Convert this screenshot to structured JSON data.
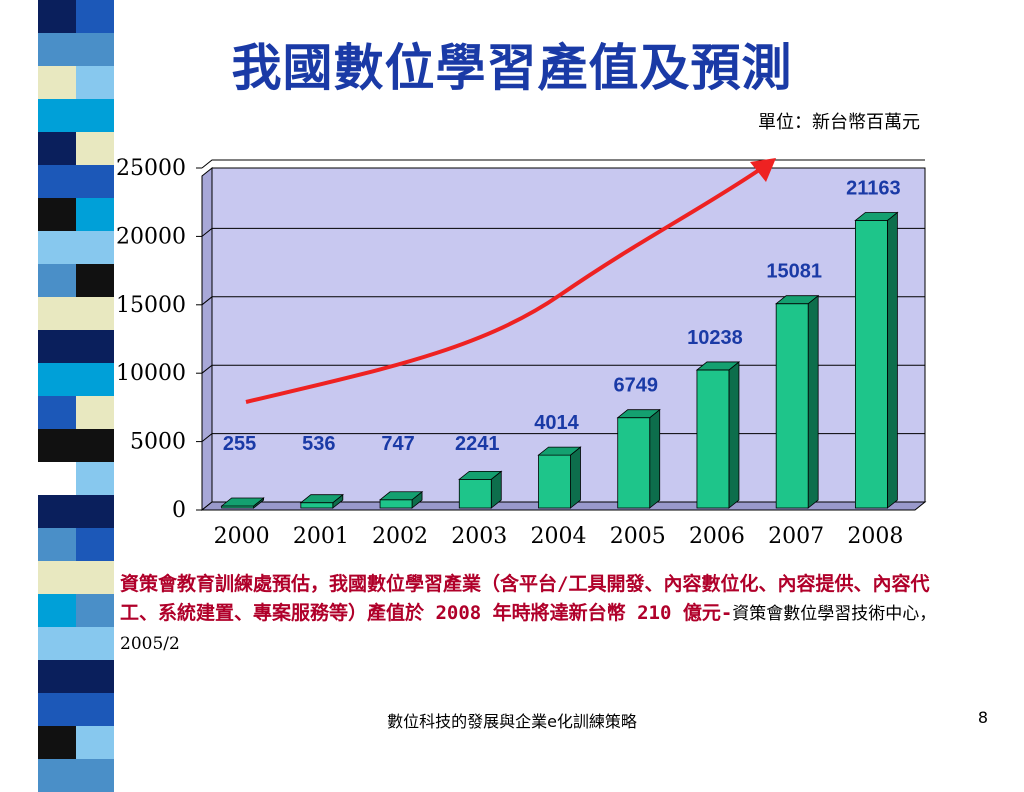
{
  "slide": {
    "title": "我國數位學習產值及預測",
    "unit": "單位：新台幣百萬元",
    "caption_main": "資策會教育訓練處預估，我國數位學習產業（含平台/工具開發、內容數位化、內容提供、內容代工、系統建置、專案服務等）產值於 2008 年時將達新台幣 210 億元-",
    "caption_source": "資策會數位學習技術中心，2005/2",
    "footer": "數位科技的發展與企業e化訓練策略",
    "page_number": "8"
  },
  "colors": {
    "title": "#1a3aa6",
    "plot_bg": "#c8c8f0",
    "bar_front": "#1ec58a",
    "bar_top": "#14a070",
    "bar_side": "#0d6e4c",
    "data_label": "#1a3aa6",
    "trend_arrow": "#ee2222",
    "stripe_palette": [
      "#0a1f5c",
      "#4a8fc8",
      "#e8e8c0",
      "#00a0d8",
      "#1c58b8",
      "#111111",
      "#87c8ee",
      "#ffffff",
      "#3a78c0"
    ]
  },
  "chart_data": {
    "type": "bar",
    "categories": [
      "2000",
      "2001",
      "2002",
      "2003",
      "2004",
      "2005",
      "2006",
      "2007",
      "2008"
    ],
    "values": [
      255,
      536,
      747,
      2241,
      4014,
      6749,
      10238,
      15081,
      21163
    ],
    "ylim": [
      0,
      25000
    ],
    "yticks": [
      "0",
      "5000",
      "10000",
      "15000",
      "20000",
      "25000"
    ],
    "grid": true,
    "bar_style": "3d",
    "data_labels": true,
    "annotation": "upward trend arrow"
  }
}
